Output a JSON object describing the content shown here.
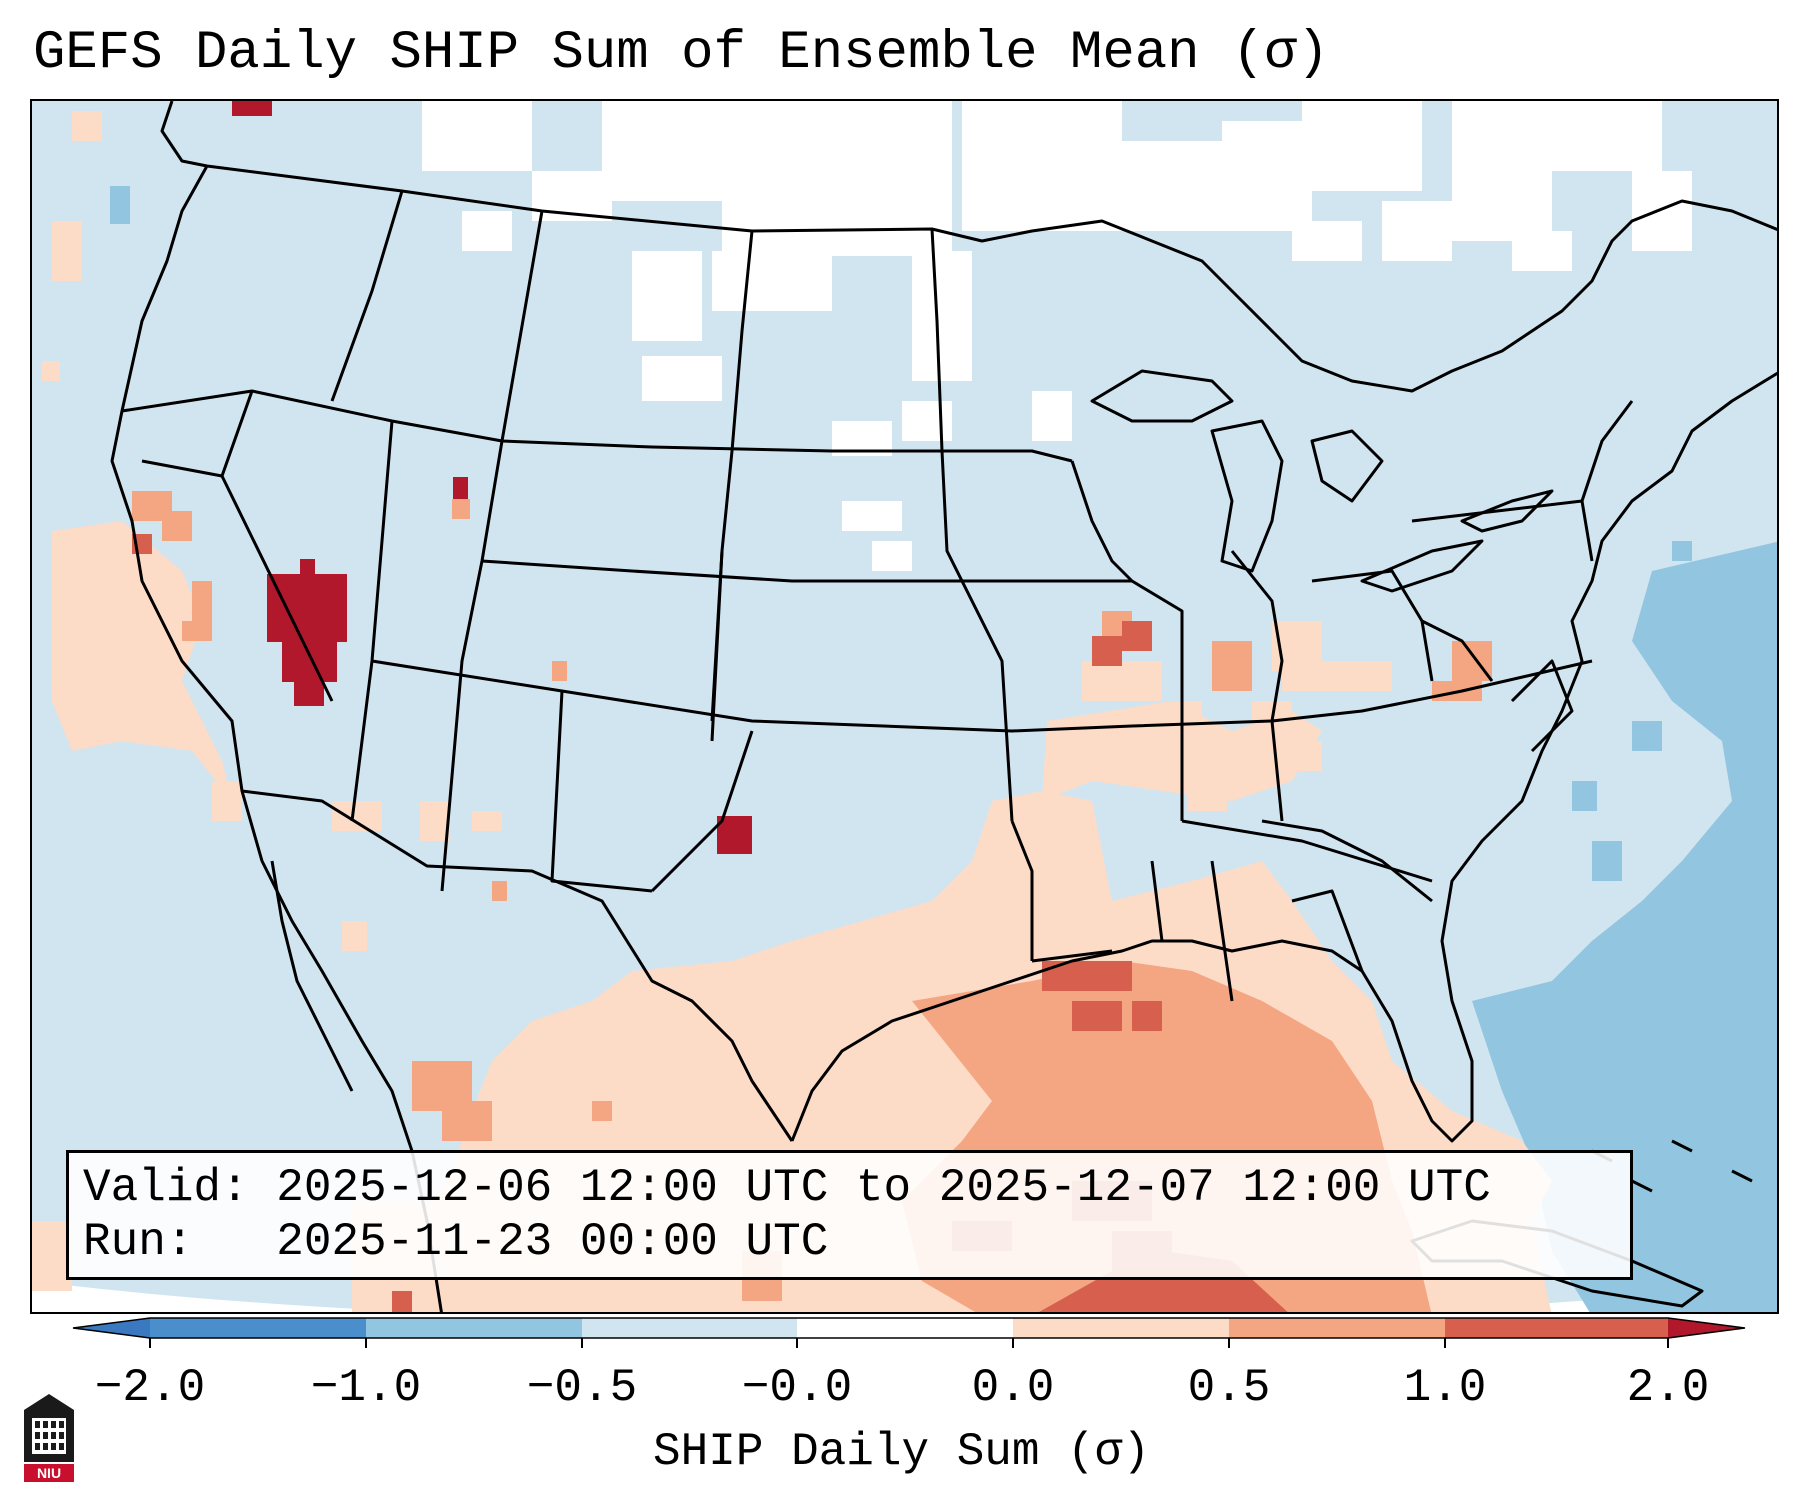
{
  "header": {
    "title": "GEFS Daily SHIP Sum of Ensemble Mean (σ)"
  },
  "info_box": {
    "valid_line": "Valid: 2025-12-06 12:00 UTC to 2025-12-07 12:00 UTC",
    "run_line": "Run:   2025-11-23 00:00 UTC"
  },
  "colorbar": {
    "title": "SHIP Daily Sum (σ)",
    "tick_labels": [
      "−2.0",
      "−1.0",
      "−0.5",
      "−0.0",
      "0.0",
      "0.5",
      "1.0",
      "2.0"
    ],
    "bins": [
      {
        "range": "< -2.0",
        "color": "#3a78c0"
      },
      {
        "range": "-2.0 to -1.0",
        "color": "#4a8fcb"
      },
      {
        "range": "-1.0 to -0.5",
        "color": "#92c5df"
      },
      {
        "range": "-0.5 to -0.0",
        "color": "#d1e5f1"
      },
      {
        "range": "-0.0 to 0.0",
        "color": "#ffffff"
      },
      {
        "range": "0.0 to 0.5",
        "color": "#fcdbc7"
      },
      {
        "range": "0.5 to 1.0",
        "color": "#f4a582"
      },
      {
        "range": "1.0 to 2.0",
        "color": "#d6604d"
      },
      {
        "range": "> 2.0",
        "color": "#b2182b"
      }
    ]
  },
  "map": {
    "region": "Continental United States",
    "max_anomaly_regions": [
      "central Nevada",
      "eastern New Mexico",
      "northern Utah",
      "Gulf of Mexico"
    ]
  },
  "logo": {
    "text": "NIU",
    "color": "#c8102e",
    "icon": "niu-tower-icon"
  }
}
